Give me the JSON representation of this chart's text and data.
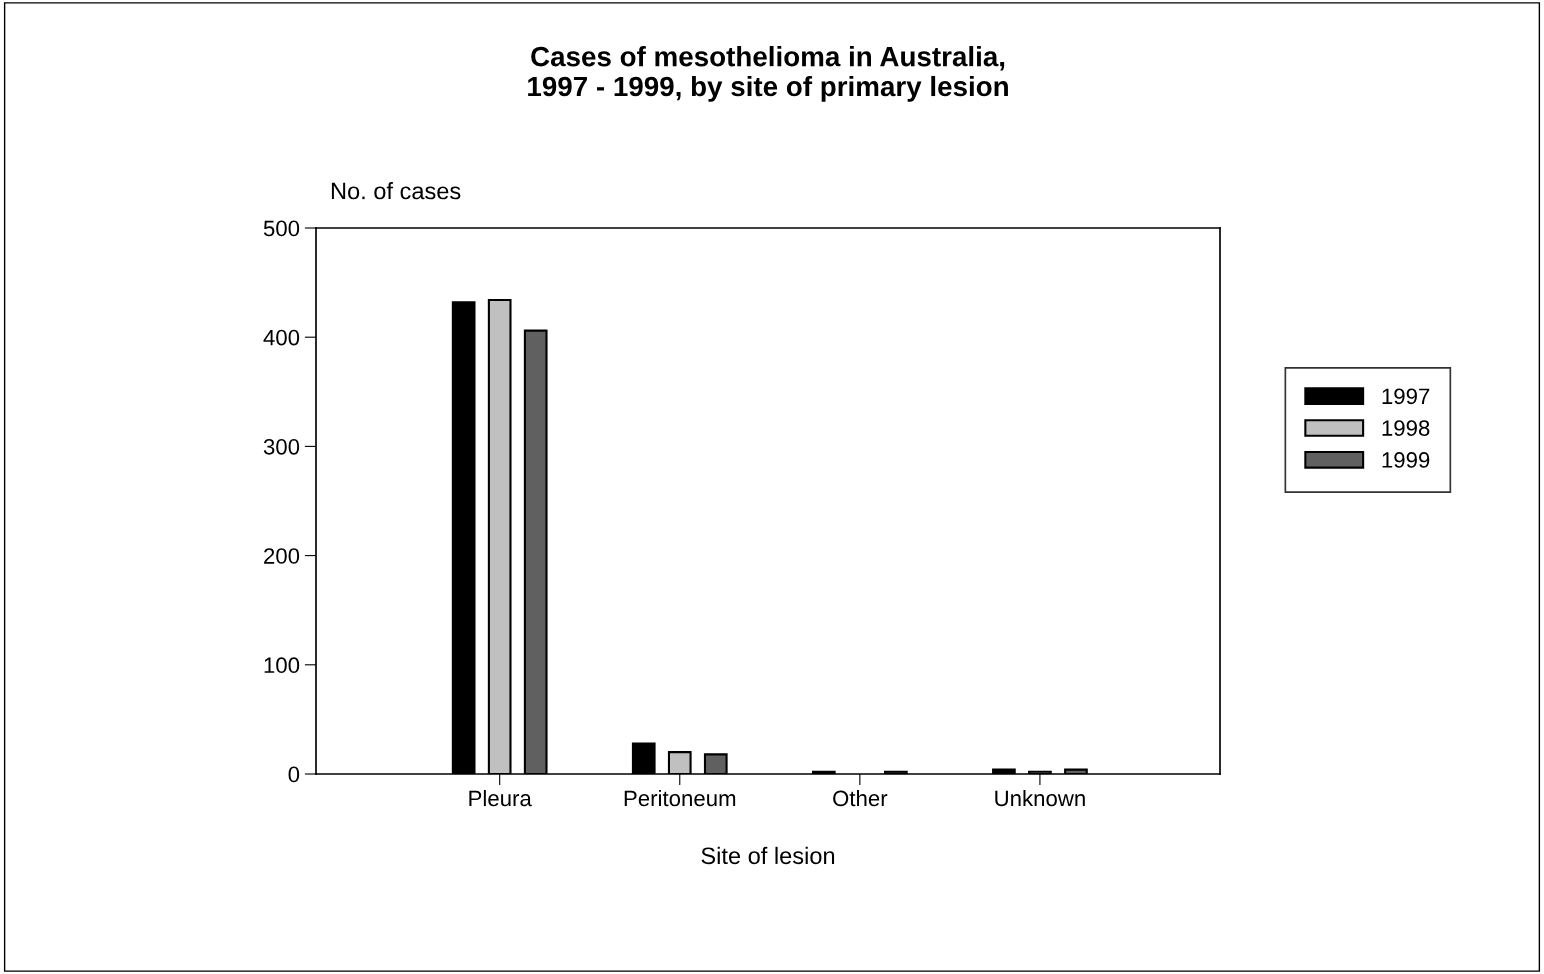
{
  "chart_data": {
    "type": "bar",
    "title": "Cases of mesothelioma in Australia,\n1997 - 1999, by site of primary lesion",
    "xlabel": "Site of lesion",
    "ylabel": "No. of cases",
    "categories": [
      "Pleura",
      "Peritoneum",
      "Other",
      "Unknown"
    ],
    "series": [
      {
        "name": "1997",
        "color": "#000000",
        "values": [
          432,
          28,
          2,
          4
        ]
      },
      {
        "name": "1998",
        "color": "#c0c0c0",
        "values": [
          434,
          20,
          null,
          2
        ]
      },
      {
        "name": "1999",
        "color": "#606060",
        "values": [
          406,
          18,
          2,
          4
        ]
      }
    ],
    "ylim": [
      0,
      500
    ],
    "yticks": [
      0,
      100,
      200,
      300,
      400,
      500
    ],
    "grid": false,
    "legend": "right"
  }
}
